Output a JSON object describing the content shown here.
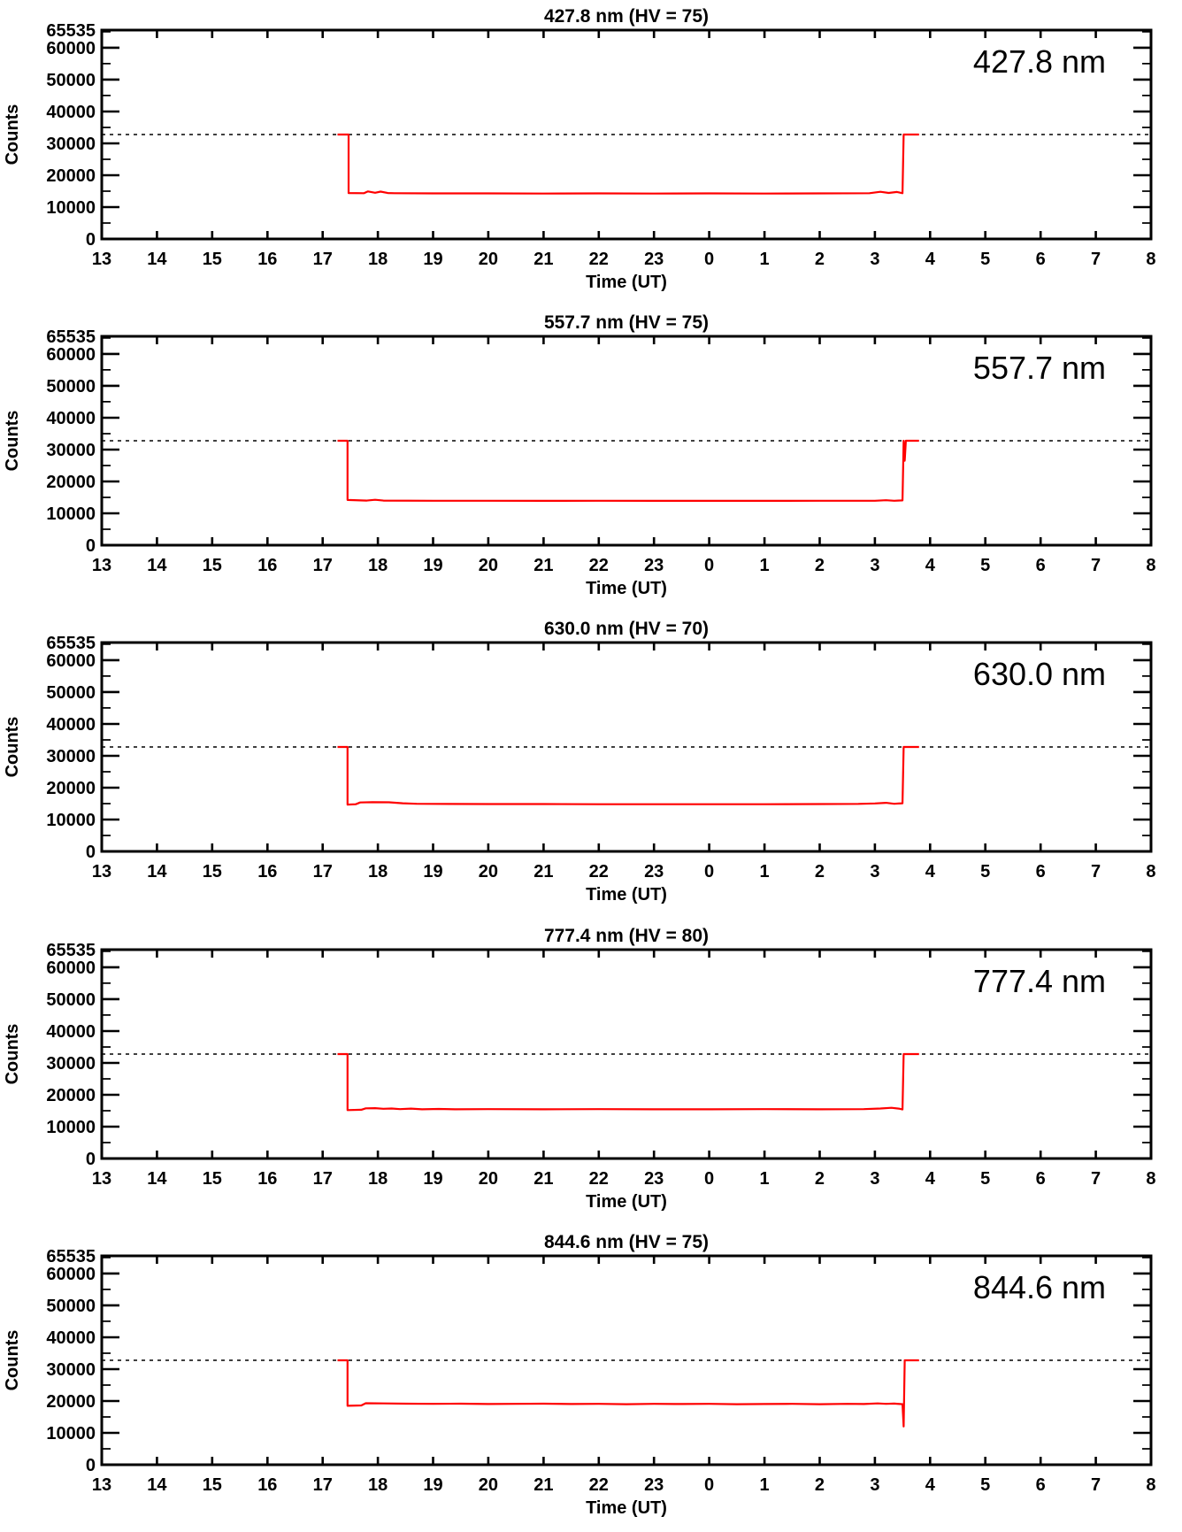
{
  "colors": {
    "series": "#ff0000",
    "axis": "#000000",
    "dashed_line": "#000000",
    "background": "#ffffff"
  },
  "chart_data": [
    {
      "type": "line",
      "title": "427.8 nm (HV = 75)",
      "inplot_label": "427.8 nm",
      "xlabel": "Time (UT)",
      "ylabel": "Counts",
      "xlim": [
        13,
        32
      ],
      "ylim": [
        0,
        65535
      ],
      "x_tick_values": [
        13,
        14,
        15,
        16,
        17,
        18,
        19,
        20,
        21,
        22,
        23,
        24,
        25,
        26,
        27,
        28,
        29,
        30,
        31,
        32
      ],
      "x_tick_labels": [
        "13",
        "14",
        "15",
        "16",
        "17",
        "18",
        "19",
        "20",
        "21",
        "22",
        "23",
        "0",
        "1",
        "2",
        "3",
        "4",
        "5",
        "6",
        "7",
        "8"
      ],
      "y_major_values": [
        0,
        10000,
        20000,
        30000,
        40000,
        50000,
        60000,
        65535
      ],
      "y_tick_labels": [
        "0",
        "10000",
        "20000",
        "30000",
        "40000",
        "50000",
        "60000",
        "65535"
      ],
      "y_minor_step": 5000,
      "grid": false,
      "dashed_line_y": 32768,
      "series": [
        {
          "name": "counts",
          "color": "#ff0000",
          "points": [
            [
              17.27,
              32768
            ],
            [
              17.47,
              32768
            ],
            [
              17.47,
              14400
            ],
            [
              17.75,
              14350
            ],
            [
              17.82,
              14900
            ],
            [
              17.95,
              14500
            ],
            [
              18.05,
              14850
            ],
            [
              18.18,
              14400
            ],
            [
              18.3,
              14350
            ],
            [
              19,
              14300
            ],
            [
              20,
              14300
            ],
            [
              21,
              14250
            ],
            [
              22,
              14300
            ],
            [
              23,
              14250
            ],
            [
              24,
              14300
            ],
            [
              25,
              14250
            ],
            [
              26,
              14300
            ],
            [
              26.9,
              14350
            ],
            [
              27.1,
              14800
            ],
            [
              27.25,
              14450
            ],
            [
              27.4,
              14750
            ],
            [
              27.5,
              14350
            ],
            [
              27.52,
              32768
            ],
            [
              27.8,
              32768
            ]
          ]
        }
      ]
    },
    {
      "type": "line",
      "title": "557.7 nm (HV = 75)",
      "inplot_label": "557.7 nm",
      "xlabel": "Time (UT)",
      "ylabel": "Counts",
      "xlim": [
        13,
        32
      ],
      "ylim": [
        0,
        65535
      ],
      "x_tick_values": [
        13,
        14,
        15,
        16,
        17,
        18,
        19,
        20,
        21,
        22,
        23,
        24,
        25,
        26,
        27,
        28,
        29,
        30,
        31,
        32
      ],
      "x_tick_labels": [
        "13",
        "14",
        "15",
        "16",
        "17",
        "18",
        "19",
        "20",
        "21",
        "22",
        "23",
        "0",
        "1",
        "2",
        "3",
        "4",
        "5",
        "6",
        "7",
        "8"
      ],
      "y_major_values": [
        0,
        10000,
        20000,
        30000,
        40000,
        50000,
        60000,
        65535
      ],
      "y_tick_labels": [
        "0",
        "10000",
        "20000",
        "30000",
        "40000",
        "50000",
        "60000",
        "65535"
      ],
      "y_minor_step": 5000,
      "grid": false,
      "dashed_line_y": 32768,
      "series": [
        {
          "name": "counts",
          "color": "#ff0000",
          "points": [
            [
              17.27,
              32768
            ],
            [
              17.45,
              32768
            ],
            [
              17.45,
              14200
            ],
            [
              17.8,
              14000
            ],
            [
              17.95,
              14250
            ],
            [
              18.1,
              14000
            ],
            [
              19,
              13950
            ],
            [
              20,
              13950
            ],
            [
              21,
              13900
            ],
            [
              22,
              13950
            ],
            [
              23,
              13900
            ],
            [
              24,
              13900
            ],
            [
              25,
              13900
            ],
            [
              26,
              13950
            ],
            [
              27.0,
              13950
            ],
            [
              27.2,
              14100
            ],
            [
              27.35,
              13950
            ],
            [
              27.5,
              14050
            ],
            [
              27.52,
              32768
            ],
            [
              27.54,
              26500
            ],
            [
              27.56,
              32768
            ],
            [
              27.8,
              32768
            ]
          ]
        }
      ]
    },
    {
      "type": "line",
      "title": "630.0 nm (HV = 70)",
      "inplot_label": "630.0 nm",
      "xlabel": "Time (UT)",
      "ylabel": "Counts",
      "xlim": [
        13,
        32
      ],
      "ylim": [
        0,
        65535
      ],
      "x_tick_values": [
        13,
        14,
        15,
        16,
        17,
        18,
        19,
        20,
        21,
        22,
        23,
        24,
        25,
        26,
        27,
        28,
        29,
        30,
        31,
        32
      ],
      "x_tick_labels": [
        "13",
        "14",
        "15",
        "16",
        "17",
        "18",
        "19",
        "20",
        "21",
        "22",
        "23",
        "0",
        "1",
        "2",
        "3",
        "4",
        "5",
        "6",
        "7",
        "8"
      ],
      "y_major_values": [
        0,
        10000,
        20000,
        30000,
        40000,
        50000,
        60000,
        65535
      ],
      "y_tick_labels": [
        "0",
        "10000",
        "20000",
        "30000",
        "40000",
        "50000",
        "60000",
        "65535"
      ],
      "y_minor_step": 5000,
      "grid": false,
      "dashed_line_y": 32768,
      "series": [
        {
          "name": "counts",
          "color": "#ff0000",
          "points": [
            [
              17.27,
              32768
            ],
            [
              17.45,
              32768
            ],
            [
              17.45,
              14700
            ],
            [
              17.6,
              14800
            ],
            [
              17.68,
              15350
            ],
            [
              17.9,
              15450
            ],
            [
              18.2,
              15400
            ],
            [
              18.45,
              15100
            ],
            [
              18.7,
              14950
            ],
            [
              19,
              14900
            ],
            [
              20,
              14850
            ],
            [
              21,
              14850
            ],
            [
              22,
              14800
            ],
            [
              23,
              14800
            ],
            [
              24,
              14800
            ],
            [
              25,
              14800
            ],
            [
              26,
              14850
            ],
            [
              26.7,
              14900
            ],
            [
              27.0,
              15050
            ],
            [
              27.2,
              15250
            ],
            [
              27.35,
              14950
            ],
            [
              27.5,
              15100
            ],
            [
              27.52,
              32768
            ],
            [
              27.8,
              32768
            ]
          ]
        }
      ]
    },
    {
      "type": "line",
      "title": "777.4 nm (HV = 80)",
      "inplot_label": "777.4 nm",
      "xlabel": "Time (UT)",
      "ylabel": "Counts",
      "xlim": [
        13,
        32
      ],
      "ylim": [
        0,
        65535
      ],
      "x_tick_values": [
        13,
        14,
        15,
        16,
        17,
        18,
        19,
        20,
        21,
        22,
        23,
        24,
        25,
        26,
        27,
        28,
        29,
        30,
        31,
        32
      ],
      "x_tick_labels": [
        "13",
        "14",
        "15",
        "16",
        "17",
        "18",
        "19",
        "20",
        "21",
        "22",
        "23",
        "0",
        "1",
        "2",
        "3",
        "4",
        "5",
        "6",
        "7",
        "8"
      ],
      "y_major_values": [
        0,
        10000,
        20000,
        30000,
        40000,
        50000,
        60000,
        65535
      ],
      "y_tick_labels": [
        "0",
        "10000",
        "20000",
        "30000",
        "40000",
        "50000",
        "60000",
        "65535"
      ],
      "y_minor_step": 5000,
      "grid": false,
      "dashed_line_y": 32768,
      "series": [
        {
          "name": "counts",
          "color": "#ff0000",
          "points": [
            [
              17.27,
              32768
            ],
            [
              17.45,
              32768
            ],
            [
              17.45,
              15200
            ],
            [
              17.7,
              15300
            ],
            [
              17.78,
              15750
            ],
            [
              17.95,
              15800
            ],
            [
              18.1,
              15600
            ],
            [
              18.25,
              15700
            ],
            [
              18.4,
              15500
            ],
            [
              18.6,
              15650
            ],
            [
              18.8,
              15450
            ],
            [
              19.1,
              15550
            ],
            [
              19.4,
              15450
            ],
            [
              20,
              15500
            ],
            [
              21,
              15450
            ],
            [
              22,
              15500
            ],
            [
              23,
              15450
            ],
            [
              24,
              15450
            ],
            [
              25,
              15500
            ],
            [
              26,
              15450
            ],
            [
              26.8,
              15500
            ],
            [
              27.1,
              15700
            ],
            [
              27.3,
              15900
            ],
            [
              27.45,
              15600
            ],
            [
              27.5,
              15400
            ],
            [
              27.52,
              32768
            ],
            [
              27.8,
              32768
            ]
          ]
        }
      ]
    },
    {
      "type": "line",
      "title": "844.6 nm (HV = 75)",
      "inplot_label": "844.6 nm",
      "xlabel": "Time (UT)",
      "ylabel": "Counts",
      "xlim": [
        13,
        32
      ],
      "ylim": [
        0,
        65535
      ],
      "x_tick_values": [
        13,
        14,
        15,
        16,
        17,
        18,
        19,
        20,
        21,
        22,
        23,
        24,
        25,
        26,
        27,
        28,
        29,
        30,
        31,
        32
      ],
      "x_tick_labels": [
        "13",
        "14",
        "15",
        "16",
        "17",
        "18",
        "19",
        "20",
        "21",
        "22",
        "23",
        "0",
        "1",
        "2",
        "3",
        "4",
        "5",
        "6",
        "7",
        "8"
      ],
      "y_major_values": [
        0,
        10000,
        20000,
        30000,
        40000,
        50000,
        60000,
        65535
      ],
      "y_tick_labels": [
        "0",
        "10000",
        "20000",
        "30000",
        "40000",
        "50000",
        "60000",
        "65535"
      ],
      "y_minor_step": 5000,
      "grid": false,
      "dashed_line_y": 32768,
      "series": [
        {
          "name": "counts",
          "color": "#ff0000",
          "points": [
            [
              17.27,
              32768
            ],
            [
              17.45,
              32768
            ],
            [
              17.45,
              18500
            ],
            [
              17.7,
              18600
            ],
            [
              17.78,
              19300
            ],
            [
              18.1,
              19250
            ],
            [
              18.5,
              19150
            ],
            [
              19,
              19100
            ],
            [
              19.5,
              19150
            ],
            [
              20,
              19050
            ],
            [
              20.5,
              19100
            ],
            [
              21,
              19150
            ],
            [
              21.5,
              19050
            ],
            [
              22,
              19100
            ],
            [
              22.5,
              19000
            ],
            [
              23,
              19100
            ],
            [
              23.5,
              19050
            ],
            [
              24,
              19100
            ],
            [
              24.5,
              19000
            ],
            [
              25,
              19050
            ],
            [
              25.5,
              19100
            ],
            [
              26,
              19000
            ],
            [
              26.5,
              19100
            ],
            [
              26.8,
              19050
            ],
            [
              27.05,
              19250
            ],
            [
              27.2,
              19100
            ],
            [
              27.35,
              19200
            ],
            [
              27.5,
              19000
            ],
            [
              27.52,
              12000
            ],
            [
              27.54,
              32768
            ],
            [
              27.8,
              32768
            ]
          ]
        }
      ]
    }
  ]
}
